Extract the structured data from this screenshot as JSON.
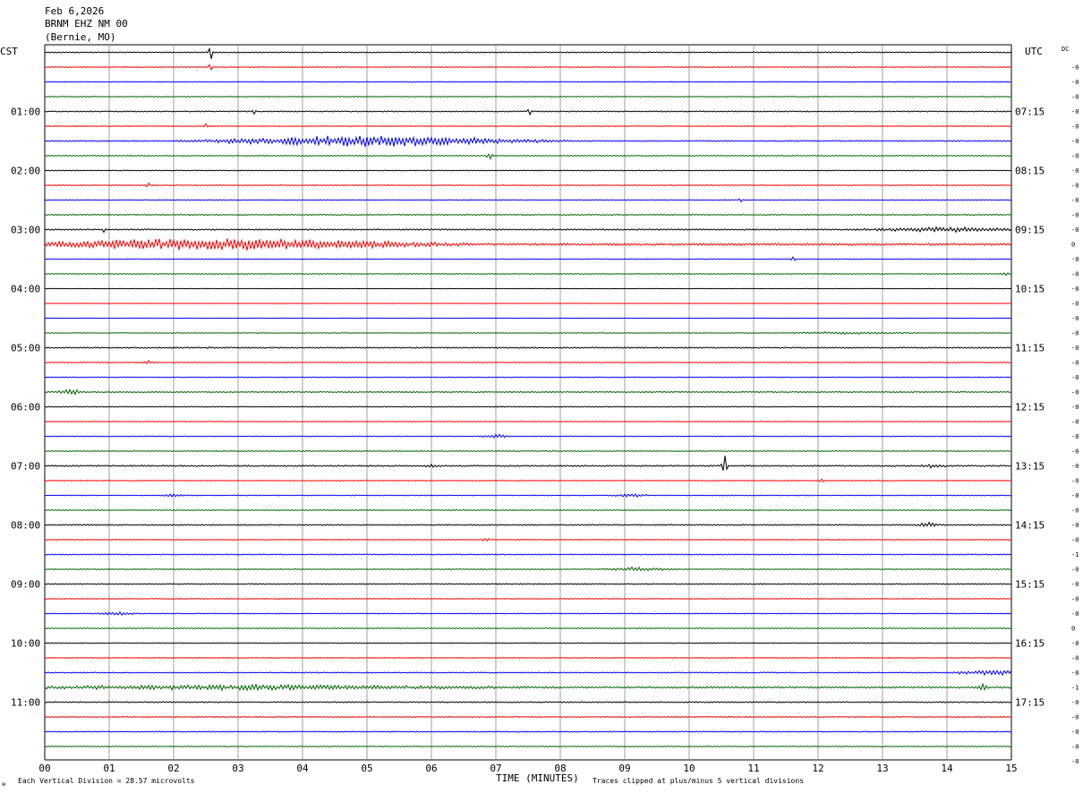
{
  "header": {
    "date": "Feb 6,2026",
    "station": "BRNM EHZ NM 00",
    "location": "(Bernie, MO)",
    "left_tz": "CST",
    "right_tz": "UTC",
    "dc_label": "DC"
  },
  "footer": {
    "scale_note": "Each Vertical Division =   28.57 microvolts",
    "x_title": "TIME (MINUTES)",
    "clip_note": "Traces clipped at plus/minus 5 vertical divisions"
  },
  "chart_data": {
    "type": "line",
    "title": "BRNM EHZ NM 00 (Bernie, MO) Feb 6,2026",
    "xlabel": "TIME (MINUTES)",
    "xlim": [
      0,
      15
    ],
    "x_ticks": [
      "00",
      "01",
      "02",
      "03",
      "04",
      "05",
      "06",
      "07",
      "08",
      "09",
      "10",
      "11",
      "12",
      "13",
      "14",
      "15"
    ],
    "trace_colors": [
      "#000000",
      "#ff0000",
      "#0000ff",
      "#006400"
    ],
    "trace_count": 48,
    "left_hour_labels": [
      "01:00",
      "02:00",
      "03:00",
      "04:00",
      "05:00",
      "06:00",
      "07:00",
      "08:00",
      "09:00",
      "10:00",
      "11:00"
    ],
    "left_label_traces": [
      4,
      8,
      12,
      16,
      20,
      24,
      28,
      32,
      36,
      40,
      44
    ],
    "right_hour_labels": [
      "07:15",
      "08:15",
      "09:15",
      "10:15",
      "11:15",
      "12:15",
      "13:15",
      "14:15",
      "15:15",
      "16:15",
      "17:15"
    ],
    "right_label_traces": [
      4,
      8,
      12,
      16,
      20,
      24,
      28,
      32,
      36,
      40,
      44
    ],
    "dc_offsets": [
      "-0",
      "-0",
      "-0",
      "-0",
      "-0",
      "-0",
      "-0",
      "-0",
      "-0",
      "-0",
      "-0",
      "-0",
      "0",
      "-0",
      "-0",
      "-0",
      "-0",
      "-0",
      "-0",
      "-0",
      "-0",
      "-0",
      "-0",
      "-0",
      "-0",
      "-0",
      "-0",
      "-0",
      "-0",
      "-0",
      "-0",
      "-0",
      "-0",
      "-1",
      "-0",
      "-0",
      "-0",
      "-0",
      "0",
      "-0",
      "-0",
      "-0",
      "-1",
      "-0",
      "-0",
      "-0",
      "-0",
      "-0"
    ],
    "noise_levels": [
      0.6,
      0.5,
      0.5,
      0.5,
      0.6,
      0.5,
      0.7,
      0.5,
      0.5,
      0.5,
      0.5,
      0.6,
      0.8,
      1.2,
      0.5,
      0.5,
      0.3,
      0.3,
      0.3,
      0.4,
      0.7,
      0.5,
      0.5,
      0.7,
      0.5,
      0.5,
      0.5,
      0.5,
      0.8,
      0.5,
      0.5,
      0.5,
      0.7,
      0.5,
      0.6,
      0.5,
      0.6,
      0.5,
      0.5,
      0.5,
      0.5,
      0.5,
      0.6,
      1.0,
      0.7,
      0.6,
      0.6,
      0.5
    ],
    "events": [
      {
        "trace": 0,
        "minute": 2.57,
        "amp": 14,
        "dur": 0.05
      },
      {
        "trace": 1,
        "minute": 2.57,
        "amp": 6,
        "dur": 0.05
      },
      {
        "trace": 4,
        "minute": 3.25,
        "amp": 4,
        "dur": 0.06
      },
      {
        "trace": 4,
        "minute": 7.52,
        "amp": 9,
        "dur": 0.05
      },
      {
        "trace": 5,
        "minute": 2.5,
        "amp": 3,
        "dur": 0.05
      },
      {
        "trace": 6,
        "minute": 5.1,
        "amp": 7,
        "dur": 4.0
      },
      {
        "trace": 7,
        "minute": 6.9,
        "amp": 6,
        "dur": 0.08
      },
      {
        "trace": 9,
        "minute": 1.6,
        "amp": 3,
        "dur": 0.05
      },
      {
        "trace": 10,
        "minute": 10.8,
        "amp": 3,
        "dur": 0.05
      },
      {
        "trace": 12,
        "minute": 0.92,
        "amp": 4,
        "dur": 0.05
      },
      {
        "trace": 12,
        "minute": 14.0,
        "amp": 2.5,
        "dur": 2.0
      },
      {
        "trace": 13,
        "minute": 2.8,
        "amp": 7,
        "dur": 5.2
      },
      {
        "trace": 14,
        "minute": 11.6,
        "amp": 2.5,
        "dur": 0.1
      },
      {
        "trace": 15,
        "minute": 14.9,
        "amp": 2,
        "dur": 0.1
      },
      {
        "trace": 19,
        "minute": 12.5,
        "amp": 1.5,
        "dur": 1.5
      },
      {
        "trace": 20,
        "minute": 2.55,
        "amp": 2,
        "dur": 0.05
      },
      {
        "trace": 21,
        "minute": 1.6,
        "amp": 2,
        "dur": 0.3
      },
      {
        "trace": 23,
        "minute": 0.4,
        "amp": 4,
        "dur": 0.3
      },
      {
        "trace": 26,
        "minute": 7.0,
        "amp": 3,
        "dur": 0.3
      },
      {
        "trace": 28,
        "minute": 10.55,
        "amp": 15,
        "dur": 0.08
      },
      {
        "trace": 28,
        "minute": 6.0,
        "amp": 2,
        "dur": 0.2
      },
      {
        "trace": 28,
        "minute": 13.8,
        "amp": 2,
        "dur": 0.3
      },
      {
        "trace": 29,
        "minute": 12.05,
        "amp": 2,
        "dur": 0.1
      },
      {
        "trace": 30,
        "minute": 2.0,
        "amp": 2.5,
        "dur": 0.3
      },
      {
        "trace": 30,
        "minute": 9.1,
        "amp": 2.5,
        "dur": 0.4
      },
      {
        "trace": 32,
        "minute": 13.7,
        "amp": 3,
        "dur": 0.3
      },
      {
        "trace": 33,
        "minute": 6.85,
        "amp": 2,
        "dur": 0.1
      },
      {
        "trace": 35,
        "minute": 9.2,
        "amp": 2.5,
        "dur": 0.8
      },
      {
        "trace": 38,
        "minute": 1.1,
        "amp": 2,
        "dur": 0.5
      },
      {
        "trace": 42,
        "minute": 14.7,
        "amp": 3,
        "dur": 1.0
      },
      {
        "trace": 43,
        "minute": 3.2,
        "amp": 2.5,
        "dur": 6.0
      },
      {
        "trace": 43,
        "minute": 14.55,
        "amp": 4,
        "dur": 0.15
      }
    ]
  }
}
